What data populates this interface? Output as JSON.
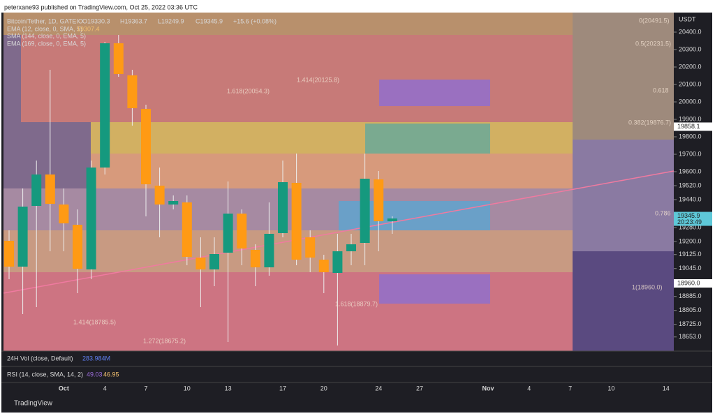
{
  "header": {
    "publisher": "peterxane93 published on TradingView.com, Oct 25, 2022 03:36 UTC"
  },
  "legend": {
    "symbol": "Bitcoin/Tether, 1D, GATEIO",
    "open": "O19330.3",
    "high": "H19363.7",
    "low": "L19249.9",
    "close": "C19345.9",
    "change": "+15.6 (+0.08%)",
    "indicators": [
      {
        "name": "EMA (12, close, 0, SMA, 5)",
        "value": "19307.4"
      },
      {
        "name": "SMA (144, close, 0, EMA, 5)"
      },
      {
        "name": "EMA (169, close, 0, EMA, 5)"
      }
    ]
  },
  "chart_data": {
    "type": "candlestick",
    "title": "Bitcoin/Tether, 1D, GATEIO",
    "y_axis_label": "USDT",
    "categories": [
      null,
      null,
      null,
      null,
      "Oct",
      null,
      null,
      "4",
      null,
      null,
      "7",
      null,
      null,
      "10",
      null,
      null,
      "13",
      null,
      null,
      null,
      "17",
      null,
      null,
      "20",
      null,
      null,
      null,
      "24",
      null,
      null,
      "27",
      null,
      null,
      null,
      null,
      "Nov",
      null,
      null,
      "4",
      null,
      null,
      "7",
      null,
      null,
      "10",
      null,
      null,
      null,
      "14"
    ],
    "series": [
      {
        "name": "open",
        "values": [
          19204,
          19056,
          19404,
          19584,
          19412,
          19296,
          19040,
          19624,
          20336,
          20152,
          19960,
          19520,
          19412,
          19424,
          19108,
          19040,
          19136,
          19360,
          19152,
          19052,
          19248,
          19536,
          19224,
          19096,
          19020,
          19144,
          19192,
          19556,
          19316,
          null,
          null,
          null,
          null,
          null,
          null,
          null,
          null,
          null,
          null,
          null,
          null,
          null,
          null,
          null,
          null,
          null,
          null,
          null,
          null
        ]
      },
      {
        "name": "high",
        "values": [
          19264,
          19504,
          19664,
          20184,
          19504,
          19384,
          19664,
          20344,
          20384,
          20184,
          19984,
          19624,
          19464,
          19464,
          19224,
          19224,
          19544,
          19384,
          19184,
          19424,
          19664,
          19704,
          19264,
          19124,
          19244,
          19244,
          19704,
          19604,
          19344,
          null,
          null,
          null,
          null,
          null,
          null,
          null,
          null,
          null,
          null,
          null,
          null,
          null,
          null,
          null,
          null,
          null,
          null,
          null,
          null
        ]
      },
      {
        "name": "low",
        "values": [
          18984,
          18784,
          18824,
          19144,
          19144,
          18904,
          18984,
          19584,
          20144,
          19864,
          19344,
          19224,
          19384,
          19064,
          18824,
          18944,
          18624,
          19064,
          18944,
          19004,
          19224,
          19064,
          19024,
          18904,
          18604,
          19064,
          19064,
          19144,
          19244,
          null,
          null,
          null,
          null,
          null,
          null,
          null,
          null,
          null,
          null,
          null,
          null,
          null,
          null,
          null,
          null,
          null,
          null,
          null,
          null
        ]
      },
      {
        "name": "close",
        "values": [
          19056,
          19400,
          19584,
          19416,
          19304,
          19044,
          19624,
          20336,
          20160,
          19964,
          19528,
          19412,
          19432,
          19112,
          19040,
          19128,
          19360,
          19160,
          19052,
          19244,
          19540,
          19096,
          19108,
          19024,
          19144,
          19184,
          19560,
          19316,
          19332,
          null,
          null,
          null,
          null,
          null,
          null,
          null,
          null,
          null,
          null,
          null,
          null,
          null,
          null,
          null,
          null,
          null,
          null,
          null,
          null
        ]
      }
    ],
    "up_color": "#15997e",
    "down_color": "#ff9a14",
    "ylim": [
      18572,
      20512
    ],
    "yticks": [
      {
        "value": 20400,
        "label": "20400.0"
      },
      {
        "value": 20300,
        "label": "20300.0"
      },
      {
        "value": 20200,
        "label": "20200.0"
      },
      {
        "value": 20100,
        "label": "20100.0"
      },
      {
        "value": 20000,
        "label": "20000.0"
      },
      {
        "value": 19900,
        "label": "19900.0"
      },
      {
        "value": 19800,
        "label": "19800.0"
      },
      {
        "value": 19700,
        "label": "19700.0"
      },
      {
        "value": 19600,
        "label": "19600.0"
      },
      {
        "value": 19520,
        "label": "19520.0"
      },
      {
        "value": 19440,
        "label": "19440.0"
      },
      {
        "value": 19280,
        "label": "19280.0"
      },
      {
        "value": 19200,
        "label": "19200.0"
      },
      {
        "value": 19125,
        "label": "19125.0"
      },
      {
        "value": 19045,
        "label": "19045.0"
      },
      {
        "value": 18885,
        "label": "18885.0"
      },
      {
        "value": 18805,
        "label": "18805.0"
      },
      {
        "value": 18725,
        "label": "18725.0"
      },
      {
        "value": 18653,
        "label": "18653.0"
      }
    ],
    "price_badges": [
      {
        "value": 19858.1,
        "label": "19858.1"
      },
      {
        "value": 19345.9,
        "label": "19345.9",
        "time": "20:23:49"
      },
      {
        "value": 18960,
        "label": "18960.0"
      }
    ],
    "annotations": [
      "0(20491.5)",
      "0.5(20231.5)",
      "0.618",
      "1.414(20125.8)",
      "1.618(20054.3)",
      "0.382(19876.7)",
      "0.786",
      "1(18960.0)",
      "1.618(18879.7)",
      "1.414(18785.5)",
      "1.272(18675.2)"
    ]
  },
  "panes": [
    {
      "name": "24H Vol (close, Default)",
      "value": "283.984M"
    },
    {
      "name": "RSI (14, close, SMA, 14, 2)",
      "values": [
        "49.03",
        "46.95"
      ]
    }
  ],
  "footer": {
    "brand": "TradingView"
  }
}
